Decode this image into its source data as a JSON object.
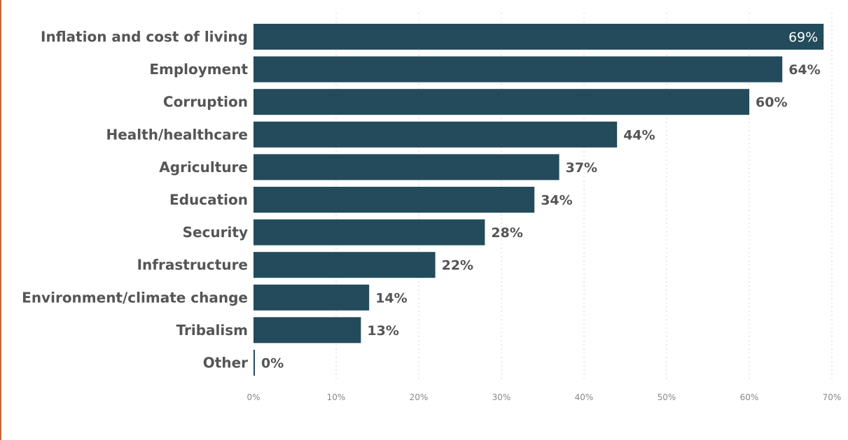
{
  "colors": {
    "bar": "#234b5b",
    "edge_accent": "#c2673a"
  },
  "chart_data": {
    "type": "bar",
    "orientation": "horizontal",
    "categories": [
      "Inflation and cost of living",
      "Employment",
      "Corruption",
      "Health/healthcare",
      "Agriculture",
      "Education",
      "Security",
      "Infrastructure",
      "Environment/climate change",
      "Tribalism",
      "Other"
    ],
    "values": [
      69,
      64,
      60,
      44,
      37,
      34,
      28,
      22,
      14,
      13,
      0
    ],
    "value_labels": [
      "69%",
      "64%",
      "60%",
      "44%",
      "37%",
      "34%",
      "28%",
      "22%",
      "14%",
      "13%",
      "0%"
    ],
    "xlim": [
      0,
      70
    ],
    "xticks": [
      0,
      10,
      20,
      30,
      40,
      50,
      60,
      70
    ],
    "xtick_labels": [
      "0%",
      "10%",
      "20%",
      "30%",
      "40%",
      "50%",
      "60%",
      "70%"
    ],
    "grid": "vertical dotted",
    "legend": "none",
    "title": "",
    "xlabel": "",
    "ylabel": ""
  }
}
